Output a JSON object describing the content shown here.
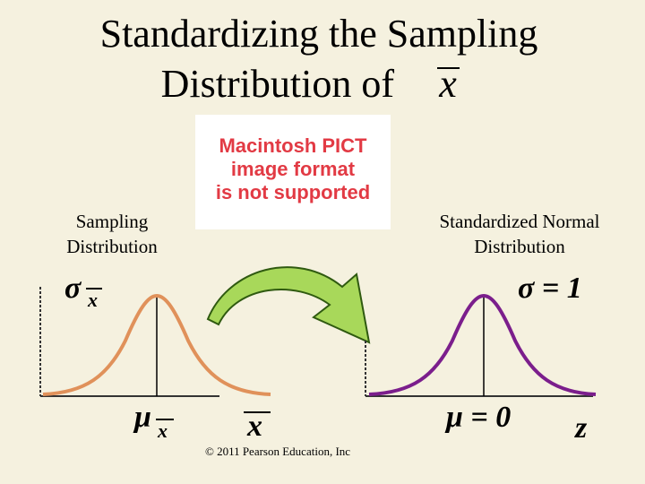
{
  "title": {
    "line1": "Standardizing the Sampling",
    "line2": "Distribution of",
    "line2_var": "x"
  },
  "placeholder": {
    "lines": [
      "Macintosh PICT",
      "image format",
      "is not supported"
    ]
  },
  "left": {
    "label": [
      "Sampling",
      "Distribution"
    ],
    "sigma": "σ",
    "sigma_sub": "x",
    "mu": "μ",
    "mu_sub": "x",
    "axis_var": "x"
  },
  "right": {
    "label": [
      "Standardized Normal",
      "Distribution"
    ],
    "sigma": "σ = 1",
    "mu": "μ = 0",
    "axis_var": "z"
  },
  "footer": "© 2011 Pearson Education, Inc"
}
